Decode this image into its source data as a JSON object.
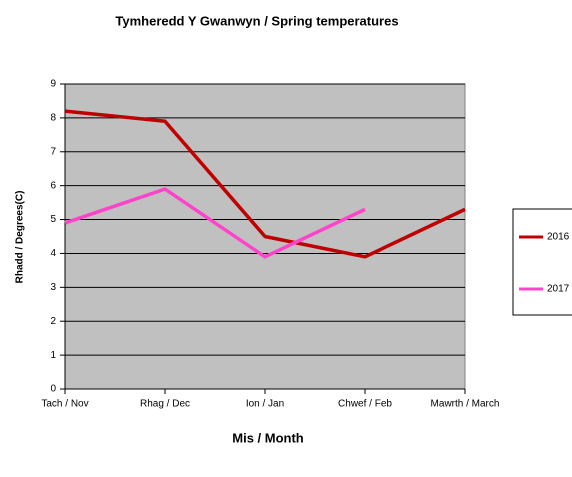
{
  "chart_data": {
    "type": "line",
    "title": "Tymheredd Y Gwanwyn / Spring temperatures",
    "x_label": "Mis / Month",
    "y_label": "Rhadd / Degrees(C)",
    "categories": [
      "Tach / Nov",
      "Rhag / Dec",
      "Ion / Jan",
      "Chwef / Feb",
      "Mawrth / March"
    ],
    "series": [
      {
        "name": "2016",
        "color": "#c00000",
        "values": [
          8.2,
          7.9,
          4.5,
          3.9,
          5.3
        ]
      },
      {
        "name": "2017",
        "color": "#ff44cc",
        "values": [
          4.9,
          5.9,
          3.9,
          5.3,
          null
        ]
      }
    ],
    "ylim": [
      0,
      9
    ],
    "yticks": [
      0,
      1,
      2,
      3,
      4,
      5,
      6,
      7,
      8,
      9
    ],
    "grid": true,
    "legend": "right"
  }
}
